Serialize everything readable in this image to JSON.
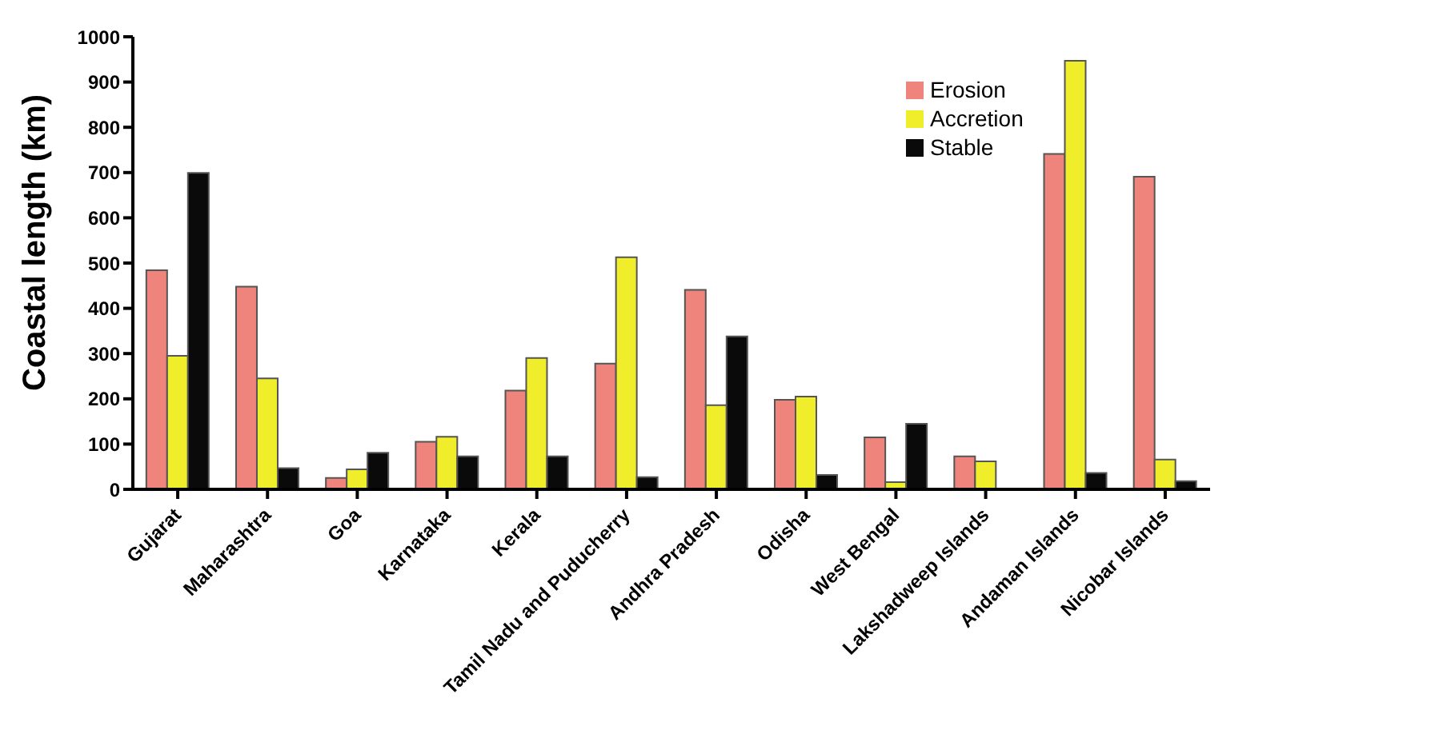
{
  "chart_data": {
    "type": "bar",
    "ylabel": "Coastal length (km)",
    "categories": [
      "Gujarat",
      "Maharashtra",
      "Goa",
      "Karnataka",
      "Kerala",
      "Tamil Nadu and Puducherry",
      "Andhra Pradesh",
      "Odisha",
      "West Bengal",
      "Lakshadweep Islands",
      "Andaman Islands",
      "Nicobar Islands"
    ],
    "series": [
      {
        "name": "Erosion",
        "color": "#ee847c",
        "values": [
          484,
          448,
          25,
          105,
          218,
          278,
          441,
          198,
          115,
          73,
          741,
          691
        ]
      },
      {
        "name": "Accretion",
        "color": "#f0ee2a",
        "values": [
          295,
          245,
          44,
          116,
          290,
          513,
          186,
          205,
          16,
          62,
          947,
          66
        ]
      },
      {
        "name": "Stable",
        "color": "#0a0a0a",
        "values": [
          699,
          47,
          81,
          73,
          73,
          27,
          338,
          32,
          145,
          null,
          36,
          18
        ]
      }
    ],
    "ylim": [
      0,
      1000
    ],
    "yticks": [
      0,
      100,
      200,
      300,
      400,
      500,
      600,
      700,
      800,
      900,
      1000
    ],
    "grid": false,
    "legend": "top right"
  }
}
